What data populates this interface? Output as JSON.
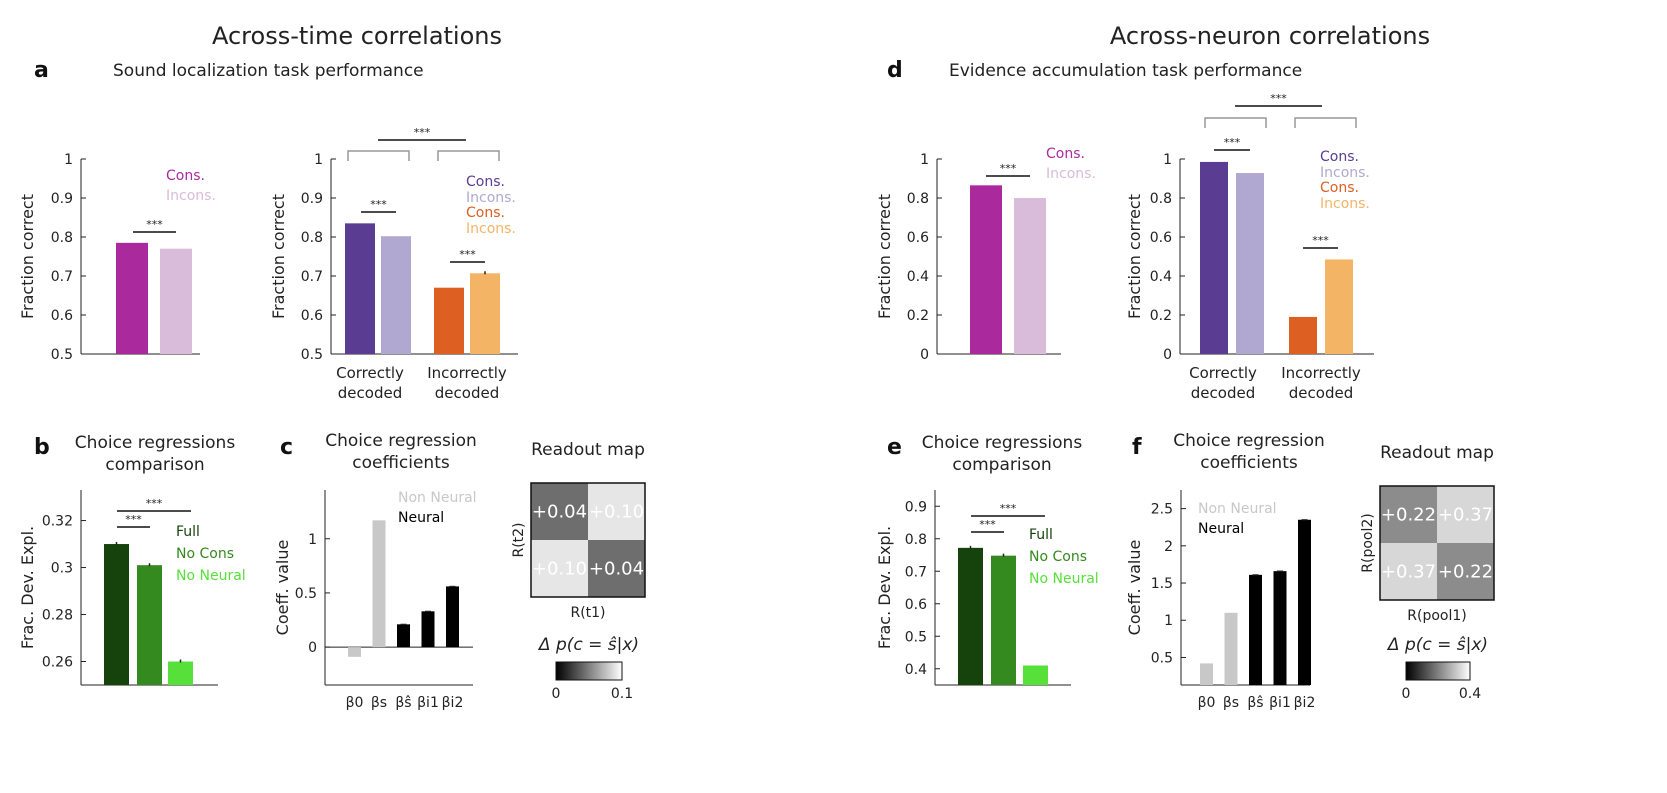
{
  "titles": {
    "left": "Across-time correlations",
    "right": "Across-neuron correlations"
  },
  "colors": {
    "cons_pink": "#aa2a9e",
    "incons_pink": "#d9bcd9",
    "cons_purple": "#5b3c93",
    "incons_purple": "#b1a8d1",
    "cons_orange": "#dd5f22",
    "incons_orange": "#f4b466",
    "full": "#16420b",
    "no_cons": "#34891f",
    "no_neural": "#57e03a",
    "non_neural_bar": "#c8c8c8",
    "neural_bar": "#000000"
  },
  "chart_data": [
    {
      "id": "a_left",
      "letter": "a",
      "type": "bar",
      "title": "Sound localization task performance",
      "ylabel": "Fraction correct",
      "ylim": [
        0.5,
        1
      ],
      "yticks": [
        "0.5",
        "0.6",
        "0.7",
        "0.8",
        "0.9",
        "1"
      ],
      "legend": [
        "Cons.",
        "Incons."
      ],
      "series": [
        {
          "name": "Cons.",
          "values": [
            0.785
          ]
        },
        {
          "name": "Incons.",
          "values": [
            0.77
          ]
        }
      ],
      "significance": [
        "***"
      ]
    },
    {
      "id": "a_right",
      "type": "bar",
      "ylabel": "Fraction correct",
      "ylim": [
        0.5,
        1
      ],
      "yticks": [
        "0.5",
        "0.6",
        "0.7",
        "0.8",
        "0.9",
        "1"
      ],
      "categories": [
        [
          "Correctly",
          "decoded"
        ],
        [
          "Incorrectly",
          "decoded"
        ]
      ],
      "legend": [
        "Cons.",
        "Incons.",
        "Cons.",
        "Incons."
      ],
      "series": [
        {
          "name": "Cons.",
          "values": [
            0.835,
            null
          ]
        },
        {
          "name": "Incons.",
          "values": [
            0.802,
            null
          ]
        },
        {
          "name": "Cons.",
          "values": [
            null,
            0.67
          ]
        },
        {
          "name": "Incons.",
          "values": [
            null,
            0.707
          ]
        }
      ],
      "significance": [
        "***",
        "***",
        "***"
      ]
    },
    {
      "id": "b",
      "letter": "b",
      "type": "bar",
      "title": [
        "Choice regressions",
        "comparison"
      ],
      "ylabel": "Frac. Dev. Expl.",
      "ylim": [
        0.25,
        0.333
      ],
      "yticks": [
        "0.26",
        "0.28",
        "0.3",
        "0.32"
      ],
      "legend": [
        "Full",
        "No Cons",
        "No Neural"
      ],
      "series": [
        {
          "name": "Full",
          "values": [
            0.31
          ]
        },
        {
          "name": "No Cons",
          "values": [
            0.301
          ]
        },
        {
          "name": "No Neural",
          "values": [
            0.26
          ]
        }
      ],
      "significance": [
        "***",
        "***"
      ]
    },
    {
      "id": "c",
      "letter": "c",
      "type": "bar",
      "title": [
        "Choice regression",
        "coefficients"
      ],
      "ylabel": "Coeff. value",
      "ylim": [
        -0.35,
        1.45
      ],
      "yticks": [
        "0",
        "0.5",
        "1"
      ],
      "categories": [
        "β0",
        "βs",
        "βŝ",
        "βi1",
        "βi2"
      ],
      "legend": [
        "Non Neural",
        "Neural"
      ],
      "series": [
        {
          "name": "Non Neural",
          "values": [
            -0.09,
            1.17,
            null,
            null,
            null
          ]
        },
        {
          "name": "Neural",
          "values": [
            null,
            null,
            0.21,
            0.33,
            0.56
          ]
        }
      ]
    },
    {
      "id": "c_map",
      "type": "heatmap",
      "title": "Readout map",
      "xlabel": "R(t1)",
      "ylabel": "R(t2)",
      "values": [
        [
          "+0.04",
          "+0.10"
        ],
        [
          "+0.10",
          "+0.04"
        ]
      ],
      "colorbar_label": "Δ p(c = ŝ|x)",
      "colorbar_ticks": [
        "0",
        "0.1"
      ]
    },
    {
      "id": "d_left",
      "letter": "d",
      "type": "bar",
      "title": "Evidence accumulation task performance",
      "ylabel": "Fraction correct",
      "ylim": [
        0,
        1
      ],
      "yticks": [
        "0",
        "0.2",
        "0.4",
        "0.6",
        "0.8",
        "1"
      ],
      "legend": [
        "Cons.",
        "Incons."
      ],
      "series": [
        {
          "name": "Cons.",
          "values": [
            0.865
          ]
        },
        {
          "name": "Incons.",
          "values": [
            0.8
          ]
        }
      ],
      "significance": [
        "***"
      ]
    },
    {
      "id": "d_right",
      "type": "bar",
      "ylabel": "Fraction correct",
      "ylim": [
        0,
        1
      ],
      "yticks": [
        "0",
        "0.2",
        "0.4",
        "0.6",
        "0.8",
        "1"
      ],
      "categories": [
        [
          "Correctly",
          "decoded"
        ],
        [
          "Incorrectly",
          "decoded"
        ]
      ],
      "legend": [
        "Cons.",
        "Incons.",
        "Cons.",
        "Incons."
      ],
      "series": [
        {
          "name": "Cons.",
          "values": [
            0.985,
            null
          ]
        },
        {
          "name": "Incons.",
          "values": [
            0.928,
            null
          ]
        },
        {
          "name": "Cons.",
          "values": [
            null,
            0.19
          ]
        },
        {
          "name": "Incons.",
          "values": [
            null,
            0.485
          ]
        }
      ],
      "significance": [
        "***",
        "***",
        "***"
      ]
    },
    {
      "id": "e",
      "letter": "e",
      "type": "bar",
      "title": [
        "Choice regressions",
        "comparison"
      ],
      "ylabel": "Frac. Dev. Expl.",
      "ylim": [
        0.35,
        0.95
      ],
      "yticks": [
        "0.4",
        "0.5",
        "0.6",
        "0.7",
        "0.8",
        "0.9"
      ],
      "legend": [
        "Full",
        "No Cons",
        "No Neural"
      ],
      "series": [
        {
          "name": "Full",
          "values": [
            0.772
          ]
        },
        {
          "name": "No Cons",
          "values": [
            0.748
          ]
        },
        {
          "name": "No Neural",
          "values": [
            0.41
          ]
        }
      ],
      "significance": [
        "***",
        "***"
      ]
    },
    {
      "id": "f",
      "letter": "f",
      "type": "bar",
      "title": [
        "Choice regression",
        "coefficients"
      ],
      "ylabel": "Coeff. value",
      "ylim": [
        0.13,
        2.75
      ],
      "yticks": [
        "0.5",
        "1",
        "1.5",
        "2",
        "2.5"
      ],
      "categories": [
        "β0",
        "βs",
        "βŝ",
        "βi1",
        "βi2"
      ],
      "legend": [
        "Non Neural",
        "Neural"
      ],
      "series": [
        {
          "name": "Non Neural",
          "values": [
            0.42,
            1.1,
            null,
            null,
            null
          ]
        },
        {
          "name": "Neural",
          "values": [
            null,
            null,
            1.61,
            1.66,
            2.35
          ]
        }
      ]
    },
    {
      "id": "f_map",
      "type": "heatmap",
      "title": "Readout map",
      "xlabel": "R(pool1)",
      "ylabel": "R(pool2)",
      "values": [
        [
          "+0.22",
          "+0.37"
        ],
        [
          "+0.37",
          "+0.22"
        ]
      ],
      "colorbar_label": "Δ p(c = ŝ|x)",
      "colorbar_ticks": [
        "0",
        "0.4"
      ]
    }
  ]
}
